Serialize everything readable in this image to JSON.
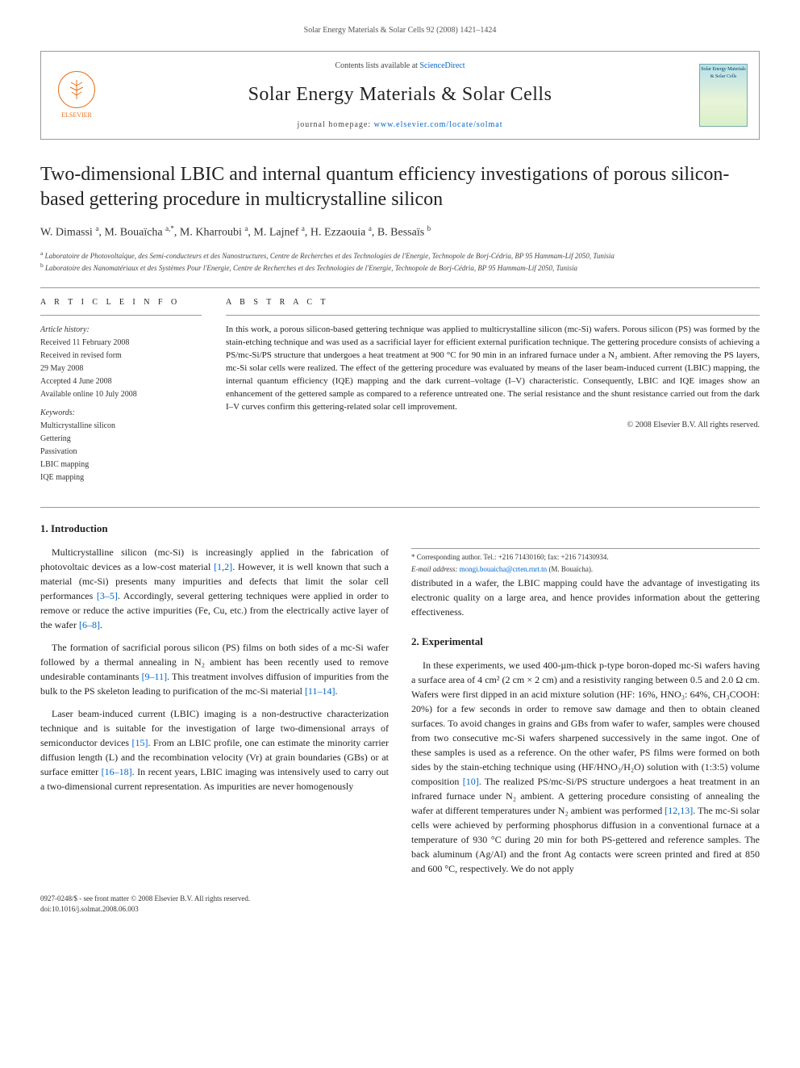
{
  "header": {
    "running_head": "Solar Energy Materials & Solar Cells 92 (2008) 1421–1424"
  },
  "masthead": {
    "publisher": "ELSEVIER",
    "contents_prefix": "Contents lists available at ",
    "contents_link": "ScienceDirect",
    "journal_title": "Solar Energy Materials & Solar Cells",
    "homepage_prefix": "journal homepage: ",
    "homepage_url": "www.elsevier.com/locate/solmat",
    "cover_label": "Solar Energy Materials & Solar Cells"
  },
  "article": {
    "title": "Two-dimensional LBIC and internal quantum efficiency investigations of porous silicon-based gettering procedure in multicrystalline silicon",
    "authors_html": "W. Dimassi <sup>a</sup>, M. Bouaïcha <sup>a,*</sup>, M. Kharroubi <sup>a</sup>, M. Lajnef <sup>a</sup>, H. Ezzaouia <sup>a</sup>, B. Bessaïs <sup>b</sup>",
    "affiliations": [
      {
        "sup": "a",
        "text": "Laboratoire de Photovoltaïque, des Semi-conducteurs et des Nanostructures, Centre de Recherches et des Technologies de l'Energie, Technopole de Borj-Cédria, BP 95 Hammam-Lif 2050, Tunisia"
      },
      {
        "sup": "b",
        "text": "Laboratoire des Nanomatériaux et des Systèmes Pour l'Energie, Centre de Recherches et des Technologies de l'Energie, Technopole de Borj-Cédria, BP 95 Hammam-Lif 2050, Tunisia"
      }
    ]
  },
  "info": {
    "heading": "A R T I C L E   I N F O",
    "history_label": "Article history:",
    "history": [
      "Received 11 February 2008",
      "Received in revised form",
      "29 May 2008",
      "Accepted 4 June 2008",
      "Available online 10 July 2008"
    ],
    "keywords_label": "Keywords:",
    "keywords": [
      "Multicrystalline silicon",
      "Gettering",
      "Passivation",
      "LBIC mapping",
      "IQE mapping"
    ]
  },
  "abstract": {
    "heading": "A B S T R A C T",
    "text": "In this work, a porous silicon-based gettering technique was applied to multicrystalline silicon (mc-Si) wafers. Porous silicon (PS) was formed by the stain-etching technique and was used as a sacrificial layer for efficient external purification technique. The gettering procedure consists of achieving a PS/mc-Si/PS structure that undergoes a heat treatment at 900 °C for 90 min in an infrared furnace under a N₂ ambient. After removing the PS layers, mc-Si solar cells were realized. The effect of the gettering procedure was evaluated by means of the laser beam-induced current (LBIC) mapping, the internal quantum efficiency (IQE) mapping and the dark current–voltage (I–V) characteristic. Consequently, LBIC and IQE images show an enhancement of the gettered sample as compared to a reference untreated one. The serial resistance and the shunt resistance carried out from the dark I–V curves confirm this gettering-related solar cell improvement.",
    "copyright": "© 2008 Elsevier B.V. All rights reserved."
  },
  "sections": {
    "s1": {
      "heading": "1.  Introduction",
      "p1_a": "Multicrystalline silicon (mc-Si) is increasingly applied in the fabrication of photovoltaic devices as a low-cost material ",
      "p1_cite1": "[1,2]",
      "p1_b": ". However, it is well known that such a material (mc-Si) presents many impurities and defects that limit the solar cell performances ",
      "p1_cite2": "[3–5]",
      "p1_c": ". Accordingly, several gettering techniques were applied in order to remove or reduce the active impurities (Fe, Cu, etc.) from the electrically active layer of the wafer ",
      "p1_cite3": "[6–8]",
      "p1_d": ".",
      "p2_a": "The formation of sacrificial porous silicon (PS) films on both sides of a mc-Si wafer followed by a thermal annealing in N₂ ambient has been recently used to remove undesirable contaminants ",
      "p2_cite1": "[9–11]",
      "p2_b": ". This treatment involves diffusion of impurities from the bulk to the PS skeleton leading to purification of the mc-Si material ",
      "p2_cite2": "[11–14]",
      "p2_c": ".",
      "p3_a": "Laser beam-induced current (LBIC) imaging is a non-destructive characterization technique and is suitable for the investigation of large two-dimensional arrays of semiconductor devices ",
      "p3_cite1": "[15]",
      "p3_b": ". From an LBIC profile, one can estimate the minority carrier diffusion length (L) and the recombination velocity (Vr) at grain boundaries (GBs) or at surface emitter ",
      "p3_cite2": "[16–18]",
      "p3_c": ". In recent years, LBIC imaging was intensively used to carry out a two-dimensional current representation. As impurities are never homogenously ",
      "p3_col2": "distributed in a wafer, the LBIC mapping could have the advantage of investigating its electronic quality on a large area, and hence provides information about the gettering effectiveness."
    },
    "s2": {
      "heading": "2.  Experimental",
      "p1_a": "In these experiments, we used 400-µm-thick p-type boron-doped mc-Si wafers having a surface area of 4 cm² (2 cm × 2 cm) and a resistivity ranging between 0.5 and 2.0 Ω cm. Wafers were first dipped in an acid mixture solution (HF: 16%, HNO₃: 64%, CH₃COOH: 20%) for a few seconds in order to remove saw damage and then to obtain cleaned surfaces. To avoid changes in grains and GBs from wafer to wafer, samples were choused from two consecutive mc-Si wafers sharpened successively in the same ingot. One of these samples is used as a reference. On the other wafer, PS films were formed on both sides by the stain-etching technique using (HF/HNO₃/H₂O) solution with (1:3:5) volume composition ",
      "p1_cite1": "[10]",
      "p1_b": ". The realized PS/mc-Si/PS structure undergoes a heat treatment in an infrared furnace under N₂ ambient. A gettering procedure consisting of annealing the wafer at different temperatures under N₂ ambient was performed ",
      "p1_cite2": "[12,13]",
      "p1_c": ". The mc-Si solar cells were achieved by performing phosphorus diffusion in a conventional furnace at a temperature of 930 °C during 20 min for both PS-gettered and reference samples. The back aluminum (Ag/Al) and the front Ag contacts were screen printed and fired at 850 and 600 °C, respectively. We do not apply"
    }
  },
  "footnote": {
    "corr": "* Corresponding author. Tel.: +216 71430160; fax: +216 71430934.",
    "email_label": "E-mail address: ",
    "email": "mongi.bouaicha@crten.rnrt.tn",
    "email_suffix": " (M. Bouaïcha)."
  },
  "footer": {
    "left1": "0927-0248/$ - see front matter © 2008 Elsevier B.V. All rights reserved.",
    "left2": "doi:10.1016/j.solmat.2008.06.003"
  },
  "colors": {
    "link": "#0066cc",
    "elsevier": "#e9711c",
    "rule": "#999999"
  }
}
